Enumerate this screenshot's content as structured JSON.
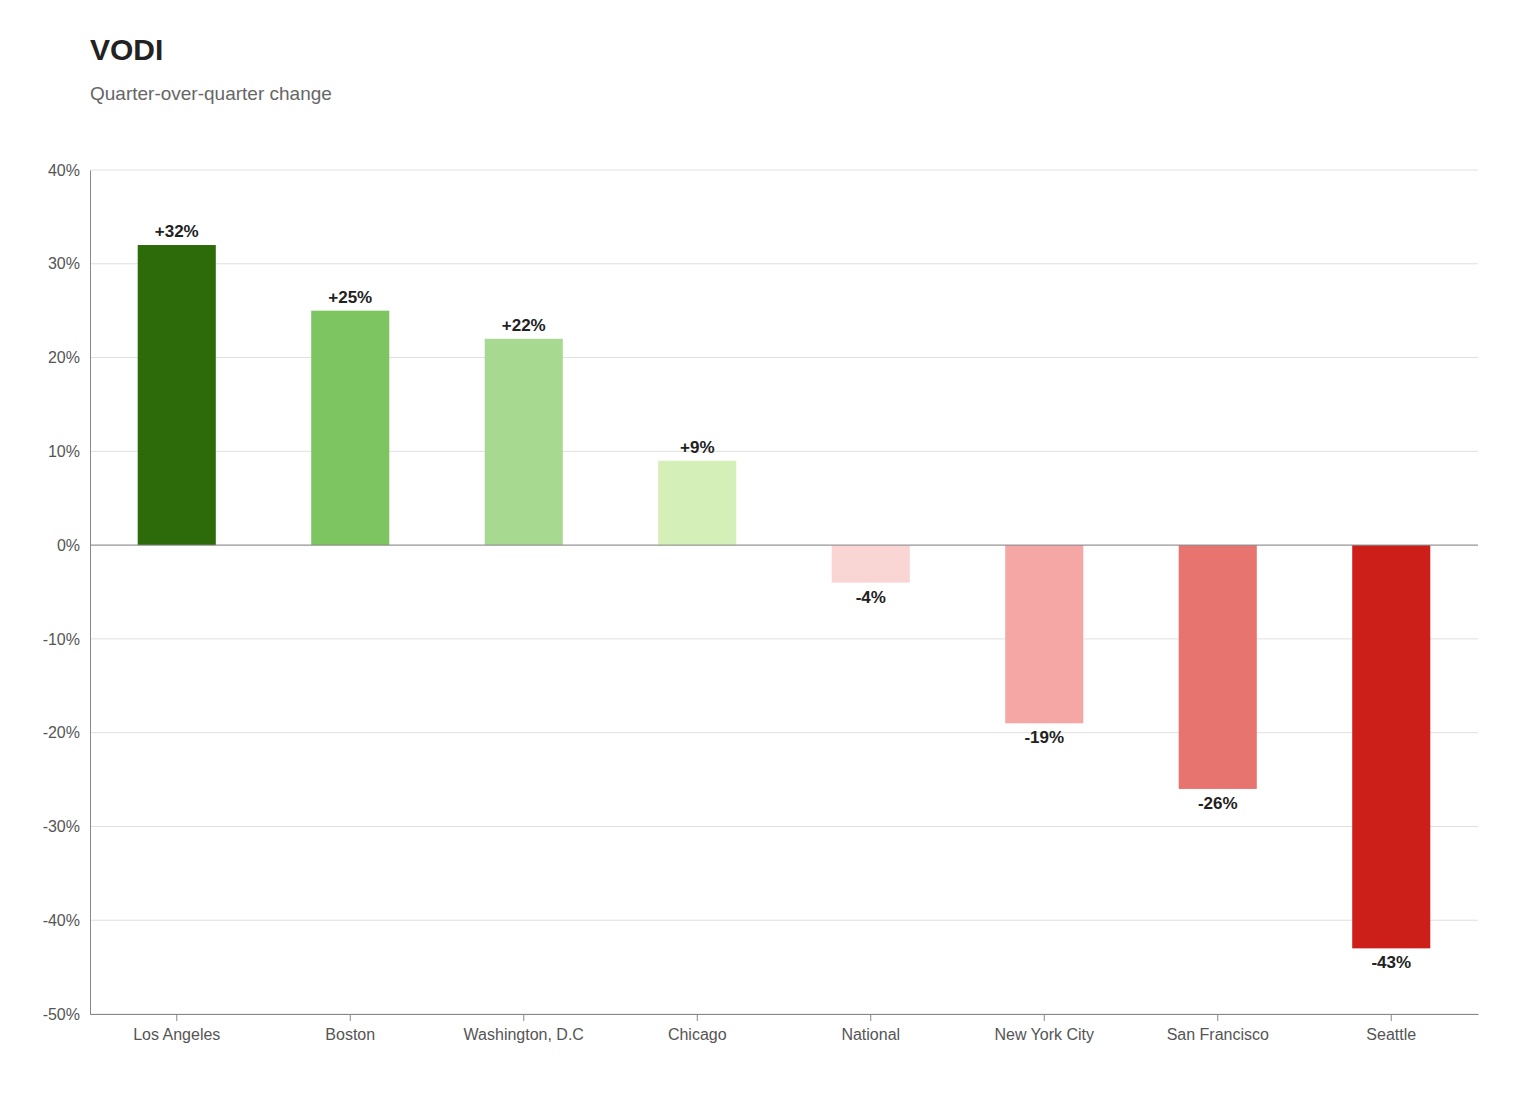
{
  "chart_data": {
    "type": "bar",
    "title": "VODI",
    "subtitle": "Quarter-over-quarter change",
    "categories": [
      "Los Angeles",
      "Boston",
      "Washington, D.C",
      "Chicago",
      "National",
      "New York City",
      "San Francisco",
      "Seattle"
    ],
    "values": [
      32,
      25,
      22,
      9,
      -4,
      -19,
      -26,
      -43
    ],
    "value_labels": [
      "+32%",
      "+25%",
      "+22%",
      "+9%",
      "-4%",
      "-19%",
      "-26%",
      "-43%"
    ],
    "colors": [
      "#2d6a0a",
      "#7dc560",
      "#a8d990",
      "#d4f0b8",
      "#f9d5d4",
      "#f4a7a5",
      "#e87470",
      "#cc1f1a"
    ],
    "ylim": [
      -50,
      40
    ],
    "yticks": [
      {
        "value": -50,
        "label": "-50%"
      },
      {
        "value": -40,
        "label": "-40%"
      },
      {
        "value": -30,
        "label": "-30%"
      },
      {
        "value": -20,
        "label": "-20%"
      },
      {
        "value": -10,
        "label": "-10%"
      },
      {
        "value": 0,
        "label": "0%"
      },
      {
        "value": 10,
        "label": "10%"
      },
      {
        "value": 20,
        "label": "20%"
      },
      {
        "value": 30,
        "label": "30%"
      },
      {
        "value": 40,
        "label": "40%"
      }
    ],
    "grid": true,
    "data_labels": true
  }
}
